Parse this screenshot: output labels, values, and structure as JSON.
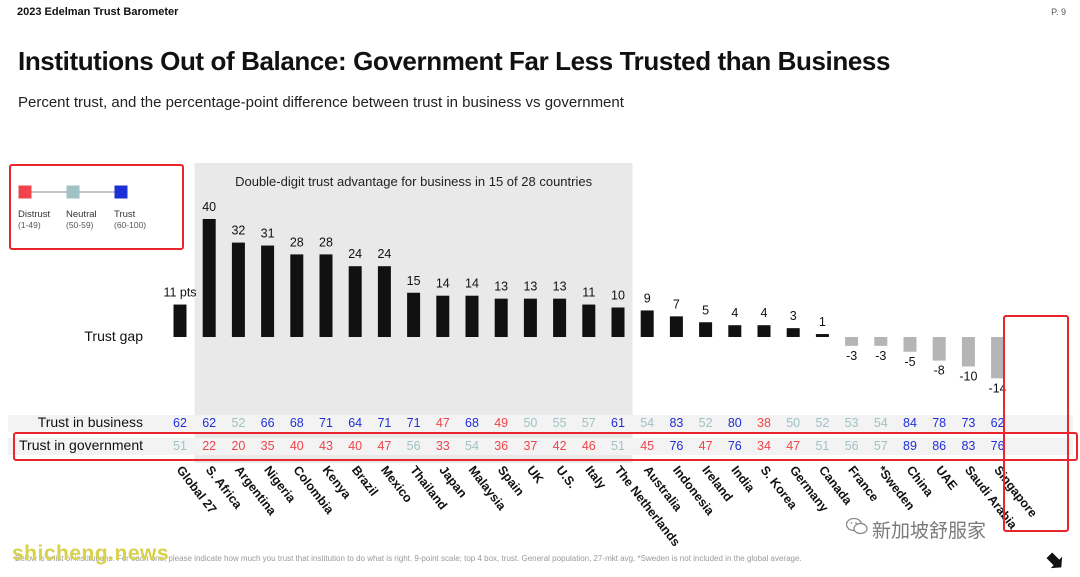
{
  "header": {
    "brand": "2023 Edelman Trust Barometer",
    "page": "P. 9"
  },
  "title": "Institutions Out of Balance: Government Far Less Trusted than Business",
  "subtitle": "Percent trust, and the percentage-point difference between trust in business vs government",
  "legend": {
    "items": [
      {
        "label": "Distrust",
        "range": "(1-49)",
        "color": "#f0444c"
      },
      {
        "label": "Neutral",
        "range": "(50-59)",
        "color": "#9fc2c4"
      },
      {
        "label": "Trust",
        "range": "(60-100)",
        "color": "#1f2fd6"
      }
    ]
  },
  "chart_data": {
    "type": "bar",
    "highlight_label": "Double-digit trust advantage for business in 15 of 28 countries",
    "gap_unit": "pts",
    "row_labels": {
      "gap": "Trust gap",
      "business": "Trust in business",
      "government": "Trust in government"
    },
    "categories": [
      "Global 27",
      "S. Africa",
      "Argentina",
      "Nigeria",
      "Colombia",
      "Kenya",
      "Brazil",
      "Mexico",
      "Thailand",
      "Japan",
      "Malaysia",
      "Spain",
      "UK",
      "U.S.",
      "Italy",
      "The Netherlands",
      "Australia",
      "Indonesia",
      "Ireland",
      "India",
      "S. Korea",
      "Germany",
      "Canada",
      "France",
      "*Sweden",
      "China",
      "UAE",
      "Saudi Arabia",
      "Singapore"
    ],
    "gap": [
      11,
      40,
      32,
      31,
      28,
      28,
      24,
      24,
      15,
      14,
      14,
      13,
      13,
      13,
      11,
      10,
      9,
      7,
      5,
      4,
      4,
      3,
      1,
      -3,
      -3,
      -5,
      -8,
      -10,
      -14
    ],
    "business": [
      62,
      62,
      52,
      66,
      68,
      71,
      64,
      71,
      71,
      47,
      68,
      49,
      50,
      55,
      57,
      61,
      54,
      83,
      52,
      80,
      38,
      50,
      52,
      53,
      54,
      84,
      78,
      73,
      62
    ],
    "government": [
      51,
      22,
      20,
      35,
      40,
      43,
      40,
      47,
      56,
      33,
      54,
      36,
      37,
      42,
      46,
      51,
      45,
      76,
      47,
      76,
      34,
      47,
      51,
      56,
      57,
      89,
      86,
      83,
      76
    ],
    "highlight_range": [
      1,
      15
    ],
    "colors": {
      "positive_bar": "#111111",
      "negative_bar": "#b5b5b5",
      "highlight_bg": "#e9e9e9",
      "callout": "#e8262c"
    }
  },
  "footnote": "Below is a list of institutions. For each one, please indicate how much you trust that institution to do what is right. 9-point scale; top 4 box, trust. General population, 27-mkt avg. *Sweden is not included in the global average.",
  "watermarks": {
    "left": "shicheng.news",
    "right": "新加坡舒服家"
  }
}
